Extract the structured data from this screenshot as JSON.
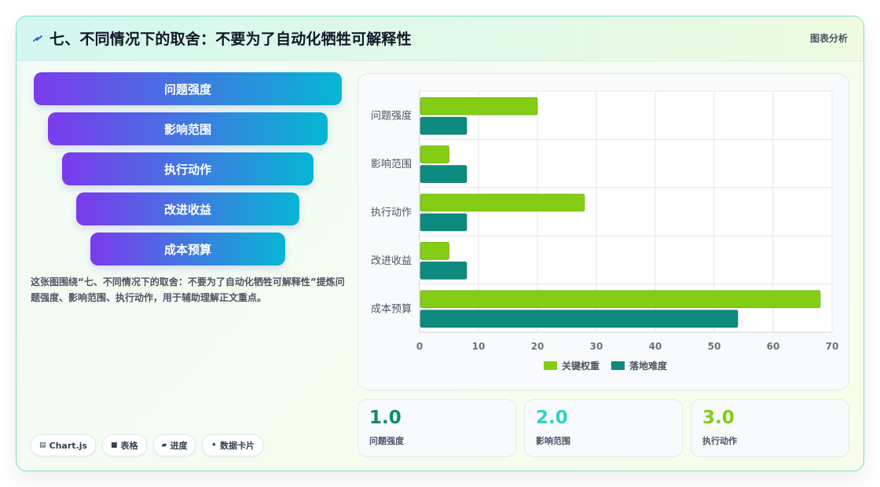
{
  "header": {
    "title": "七、不同情况下的取舍：不要为了自动化牺牲可解释性",
    "tag": "图表分析"
  },
  "funnel": [
    "问题强度",
    "影响范围",
    "执行动作",
    "改进收益",
    "成本预算"
  ],
  "description": "这张图围绕“七、不同情况下的取舍：不要为了自动化牺牲可解释性”提炼问题强度、影响范围、执行动作，用于辅助理解正文重点。",
  "pills": [
    {
      "icon": "chart-icon",
      "label": "Chart.js"
    },
    {
      "icon": "table-icon",
      "label": "表格"
    },
    {
      "icon": "progress-icon",
      "label": "进度"
    },
    {
      "icon": "card-icon",
      "label": "数据卡片"
    }
  ],
  "kpis": [
    {
      "value": "1.0",
      "label": "问题强度",
      "color": "#0f8a6f"
    },
    {
      "value": "2.0",
      "label": "影响范围",
      "color": "#2dd4bf"
    },
    {
      "value": "3.0",
      "label": "执行动作",
      "color": "#84cc16"
    }
  ],
  "chart_data": {
    "type": "bar",
    "orientation": "horizontal",
    "categories": [
      "问题强度",
      "影响范围",
      "执行动作",
      "改进收益",
      "成本预算"
    ],
    "series": [
      {
        "name": "关键权重",
        "values": [
          20,
          5,
          28,
          5,
          68
        ],
        "color": "#84cc16"
      },
      {
        "name": "落地难度",
        "values": [
          8,
          8,
          8,
          8,
          54
        ],
        "color": "#0f8a7e"
      }
    ],
    "xlim": [
      0,
      70
    ],
    "xticks": [
      0,
      10,
      20,
      30,
      40,
      50,
      60,
      70
    ],
    "grid": true,
    "legend": "bottom"
  }
}
